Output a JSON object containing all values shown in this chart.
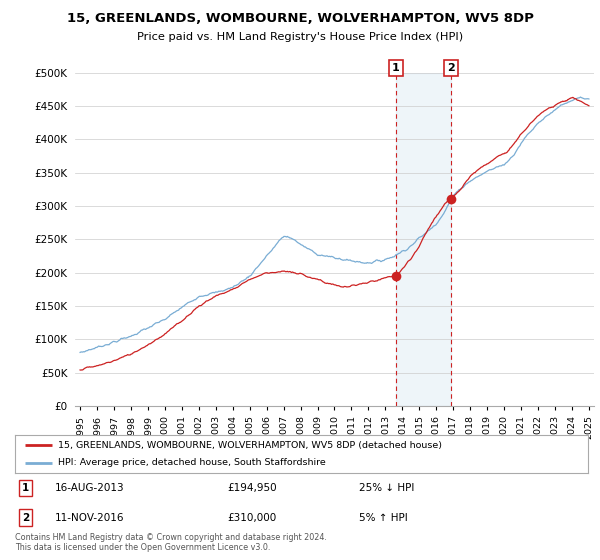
{
  "title": "15, GREENLANDS, WOMBOURNE, WOLVERHAMPTON, WV5 8DP",
  "subtitle": "Price paid vs. HM Land Registry's House Price Index (HPI)",
  "ylabel_ticks": [
    "£0",
    "£50K",
    "£100K",
    "£150K",
    "£200K",
    "£250K",
    "£300K",
    "£350K",
    "£400K",
    "£450K",
    "£500K"
  ],
  "ytick_values": [
    0,
    50000,
    100000,
    150000,
    200000,
    250000,
    300000,
    350000,
    400000,
    450000,
    500000
  ],
  "hpi_color": "#7aadd4",
  "price_color": "#cc2222",
  "sale1_x": 2013.62,
  "sale1_price": 194950,
  "sale1_date": "16-AUG-2013",
  "sale1_pct": "25% ↓ HPI",
  "sale2_x": 2016.87,
  "sale2_price": 310000,
  "sale2_date": "11-NOV-2016",
  "sale2_pct": "5% ↑ HPI",
  "legend_line1": "15, GREENLANDS, WOMBOURNE, WOLVERHAMPTON, WV5 8DP (detached house)",
  "legend_line2": "HPI: Average price, detached house, South Staffordshire",
  "footer1": "Contains HM Land Registry data © Crown copyright and database right 2024.",
  "footer2": "This data is licensed under the Open Government Licence v3.0.",
  "bg_color": "#ffffff"
}
